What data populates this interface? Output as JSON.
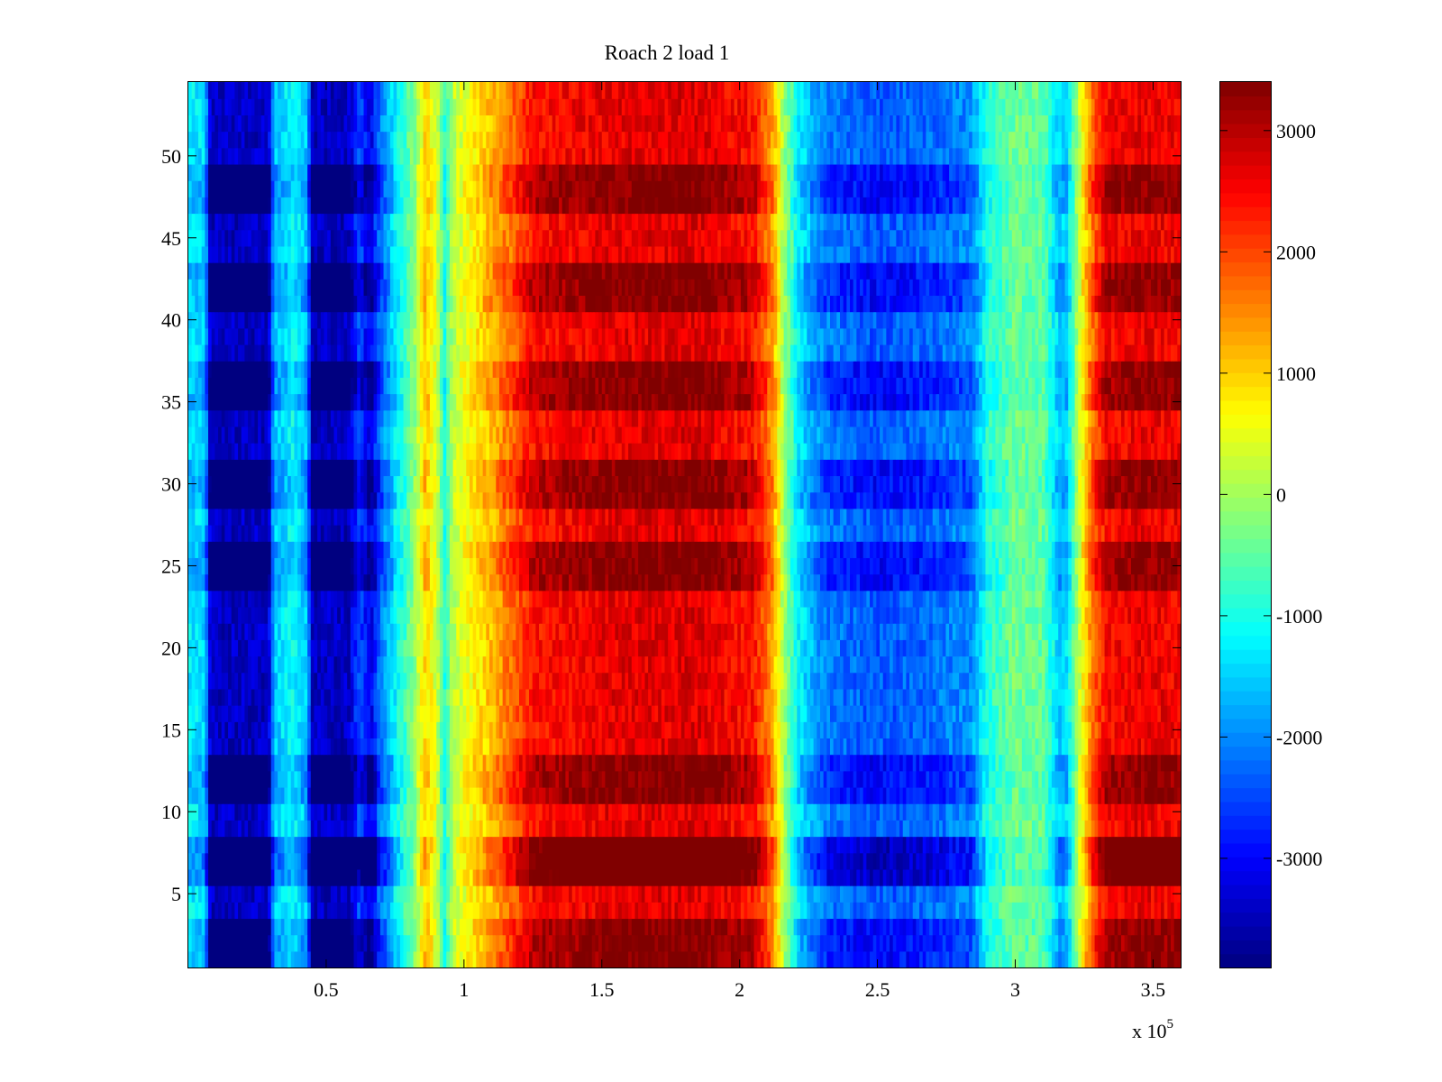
{
  "chart_data": {
    "type": "heatmap",
    "title": "Roach 2 load 1",
    "xlabel": "",
    "ylabel": "",
    "x_multiplier": {
      "base": "x 10",
      "exponent": "5"
    },
    "xlim": [
      0,
      360000
    ],
    "ylim": [
      0.5,
      54.5
    ],
    "rows": 54,
    "x_ticks": [
      {
        "value": 50000,
        "label": "0.5"
      },
      {
        "value": 100000,
        "label": "1"
      },
      {
        "value": 150000,
        "label": "1.5"
      },
      {
        "value": 200000,
        "label": "2"
      },
      {
        "value": 250000,
        "label": "2.5"
      },
      {
        "value": 300000,
        "label": "3"
      },
      {
        "value": 350000,
        "label": "3.5"
      }
    ],
    "y_ticks": [
      {
        "value": 5,
        "label": "5"
      },
      {
        "value": 10,
        "label": "10"
      },
      {
        "value": 15,
        "label": "15"
      },
      {
        "value": 20,
        "label": "20"
      },
      {
        "value": 25,
        "label": "25"
      },
      {
        "value": 30,
        "label": "30"
      },
      {
        "value": 35,
        "label": "35"
      },
      {
        "value": 40,
        "label": "40"
      },
      {
        "value": 45,
        "label": "45"
      },
      {
        "value": 50,
        "label": "50"
      }
    ],
    "colorbar": {
      "colormap": "jet",
      "clim": [
        -3900,
        3400
      ],
      "ticks": [
        {
          "value": 3000,
          "label": "3000"
        },
        {
          "value": 2000,
          "label": "2000"
        },
        {
          "value": 1000,
          "label": "1000"
        },
        {
          "value": 0,
          "label": "0"
        },
        {
          "value": -1000,
          "label": "-1000"
        },
        {
          "value": -2000,
          "label": "-2000"
        },
        {
          "value": -3000,
          "label": "-3000"
        }
      ]
    },
    "column_profile": [
      {
        "x": 0,
        "value": -1400
      },
      {
        "x": 6000,
        "value": -1600
      },
      {
        "x": 8000,
        "value": -3900
      },
      {
        "x": 29000,
        "value": -3900
      },
      {
        "x": 31000,
        "value": -1800
      },
      {
        "x": 38000,
        "value": -1300
      },
      {
        "x": 43000,
        "value": -1800
      },
      {
        "x": 45000,
        "value": -3900
      },
      {
        "x": 58000,
        "value": -3900
      },
      {
        "x": 62000,
        "value": -2800
      },
      {
        "x": 66000,
        "value": -3600
      },
      {
        "x": 70000,
        "value": -2300
      },
      {
        "x": 76000,
        "value": -1200
      },
      {
        "x": 82000,
        "value": -200
      },
      {
        "x": 86000,
        "value": 1100
      },
      {
        "x": 90000,
        "value": 400
      },
      {
        "x": 93000,
        "value": -1000
      },
      {
        "x": 96000,
        "value": 200
      },
      {
        "x": 102000,
        "value": 700
      },
      {
        "x": 110000,
        "value": 1300
      },
      {
        "x": 118000,
        "value": 2000
      },
      {
        "x": 125000,
        "value": 2700
      },
      {
        "x": 150000,
        "value": 3000
      },
      {
        "x": 185000,
        "value": 3100
      },
      {
        "x": 205000,
        "value": 2700
      },
      {
        "x": 212000,
        "value": 1500
      },
      {
        "x": 216000,
        "value": 0
      },
      {
        "x": 222000,
        "value": -1500
      },
      {
        "x": 232000,
        "value": -2400
      },
      {
        "x": 250000,
        "value": -2700
      },
      {
        "x": 270000,
        "value": -2500
      },
      {
        "x": 284000,
        "value": -2200
      },
      {
        "x": 290000,
        "value": -1000
      },
      {
        "x": 300000,
        "value": -400
      },
      {
        "x": 310000,
        "value": -500
      },
      {
        "x": 316000,
        "value": -1700
      },
      {
        "x": 319000,
        "value": -1500
      },
      {
        "x": 323000,
        "value": 200
      },
      {
        "x": 328000,
        "value": 1900
      },
      {
        "x": 333000,
        "value": 2800
      },
      {
        "x": 345000,
        "value": 3000
      },
      {
        "x": 360000,
        "value": 2900
      }
    ],
    "strong_rows": [
      1,
      2,
      3,
      6,
      7,
      8,
      11,
      12,
      13,
      24,
      25,
      26,
      29,
      30,
      31,
      35,
      36,
      37,
      41,
      42,
      43,
      47,
      48,
      49
    ],
    "strongest_rows": [
      6,
      7,
      8
    ]
  }
}
